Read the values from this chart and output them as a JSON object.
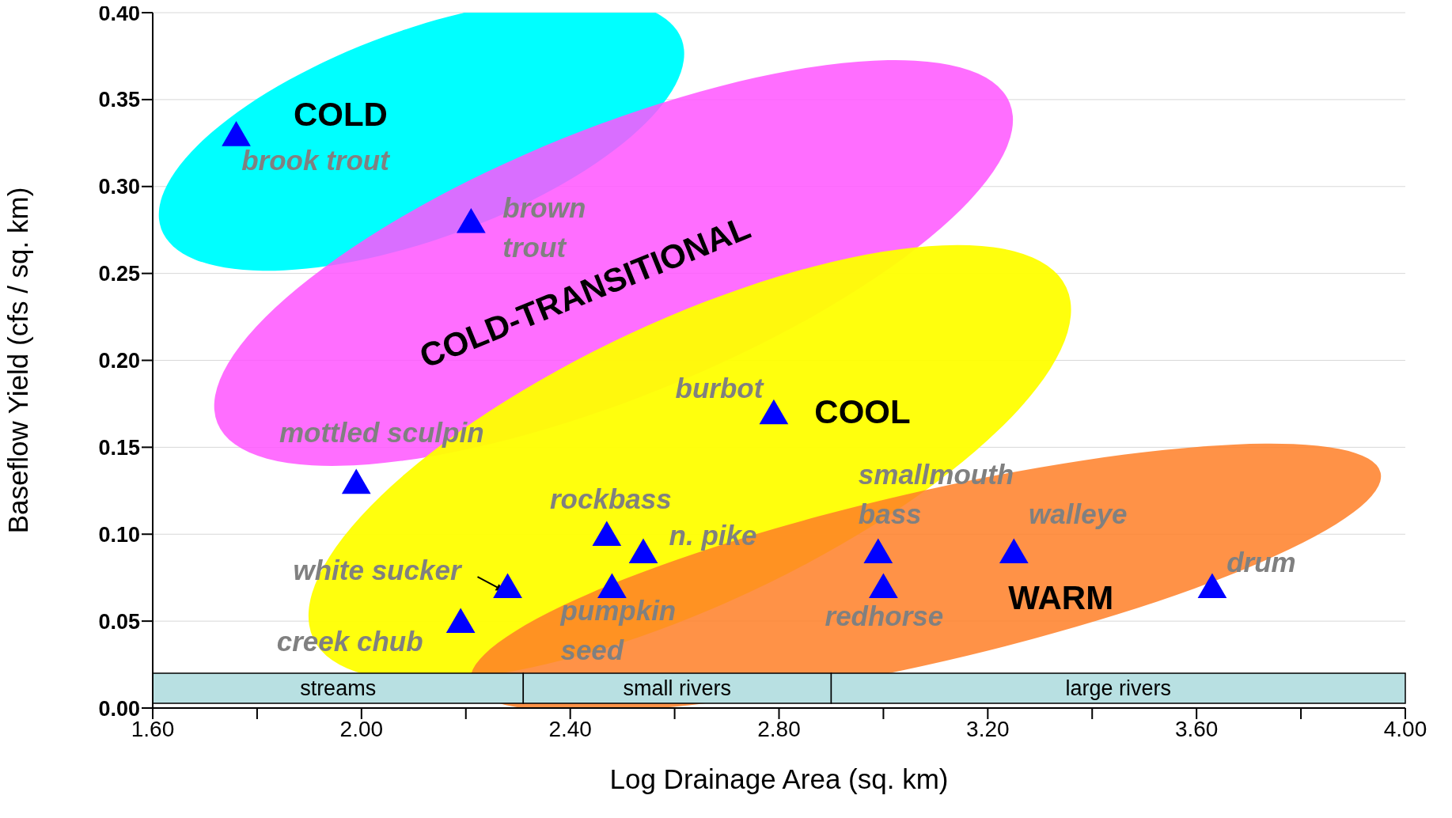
{
  "chart_data": {
    "type": "scatter",
    "xlabel": "Log Drainage Area (sq. km)",
    "ylabel": "Baseflow Yield (cfs / sq. km)",
    "x": [
      1.76,
      2.21,
      1.99,
      2.79,
      2.47,
      2.54,
      2.48,
      2.28,
      2.19,
      2.99,
      3.0,
      3.25,
      3.63
    ],
    "values": [
      0.33,
      0.28,
      0.13,
      0.17,
      0.1,
      0.09,
      0.07,
      0.07,
      0.05,
      0.09,
      0.07,
      0.09,
      0.07
    ],
    "color": "#0000ff",
    "marker": "triangle",
    "xlim": [
      1.6,
      4.0
    ],
    "xticks": [
      {
        "value": 1.6,
        "label": "1.60"
      },
      {
        "value": 1.8,
        "label": null
      },
      {
        "value": 2.0,
        "label": "2.00"
      },
      {
        "value": 2.2,
        "label": null
      },
      {
        "value": 2.4,
        "label": "2.40"
      },
      {
        "value": 2.6,
        "label": null
      },
      {
        "value": 2.8,
        "label": "2.80"
      },
      {
        "value": 3.0,
        "label": null
      },
      {
        "value": 3.2,
        "label": "3.20"
      },
      {
        "value": 3.4,
        "label": null
      },
      {
        "value": 3.6,
        "label": "3.60"
      },
      {
        "value": 3.8,
        "label": null
      },
      {
        "value": 4.0,
        "label": "4.00"
      }
    ],
    "ylim": [
      0,
      0.4
    ],
    "yticks": [
      {
        "value": 0,
        "label": "0.00"
      },
      {
        "value": 0.05,
        "label": "0.05"
      },
      {
        "value": 0.1,
        "label": "0.10"
      },
      {
        "value": 0.15,
        "label": "0.15"
      },
      {
        "value": 0.2,
        "label": "0.20"
      },
      {
        "value": 0.25,
        "label": "0.25"
      },
      {
        "value": 0.3,
        "label": "0.30"
      },
      {
        "value": 0.35,
        "label": "0.35"
      },
      {
        "value": 0.4,
        "label": "0.40"
      }
    ],
    "grid": "y",
    "bands": [
      {
        "axis": "x",
        "from": 1.6,
        "to": 2.31,
        "label": "streams",
        "color": "#b8e0e2"
      },
      {
        "axis": "x",
        "from": 2.31,
        "to": 2.9,
        "label": "small rivers",
        "color": "#b8e0e2"
      },
      {
        "axis": "x",
        "from": 2.9,
        "to": 4.0,
        "label": "large rivers",
        "color": "#b8e0e2"
      }
    ],
    "annotations": [
      {
        "text": "brook trout",
        "x": 1.76,
        "y": 0.33
      },
      {
        "text": "brown trout",
        "x": 2.21,
        "y": 0.28
      },
      {
        "text": "mottled sculpin",
        "x": 1.99,
        "y": 0.13
      },
      {
        "text": "burbot",
        "x": 2.79,
        "y": 0.17
      },
      {
        "text": "rockbass",
        "x": 2.47,
        "y": 0.1
      },
      {
        "text": "n. pike",
        "x": 2.54,
        "y": 0.09
      },
      {
        "text": "pumpkin seed",
        "x": 2.48,
        "y": 0.07
      },
      {
        "text": "white sucker",
        "x": 2.28,
        "y": 0.07
      },
      {
        "text": "creek chub",
        "x": 2.19,
        "y": 0.05
      },
      {
        "text": "smallmouth bass",
        "x": 2.99,
        "y": 0.09
      },
      {
        "text": "redhorse",
        "x": 3.0,
        "y": 0.07
      },
      {
        "text": "walleye",
        "x": 3.25,
        "y": 0.09
      },
      {
        "text": "drum",
        "x": 3.63,
        "y": 0.07
      },
      "COLD",
      "COLD-TRANSITIONAL",
      "COOL",
      "WARM"
    ]
  }
}
